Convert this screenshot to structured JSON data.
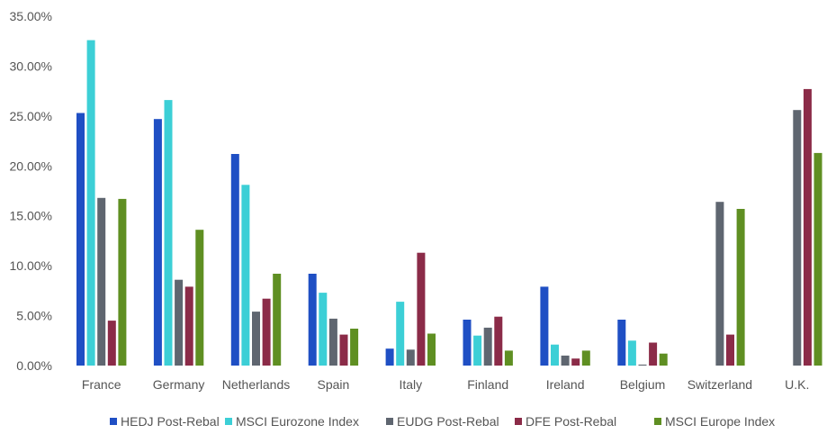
{
  "chart_data": {
    "type": "bar",
    "title": "",
    "xlabel": "",
    "ylabel": "",
    "ylim": [
      0,
      35
    ],
    "yticks": [
      0,
      5,
      10,
      15,
      20,
      25,
      30,
      35
    ],
    "ytick_labels": [
      "0.00%",
      "5.00%",
      "10.00%",
      "15.00%",
      "20.00%",
      "25.00%",
      "30.00%",
      "35.00%"
    ],
    "grid": false,
    "legend": "bottom",
    "categories": [
      "France",
      "Germany",
      "Netherlands",
      "Spain",
      "Italy",
      "Finland",
      "Ireland",
      "Belgium",
      "Switzerland",
      "U.K."
    ],
    "series": [
      {
        "name": "HEDJ Post-Rebal",
        "color": "#1f4fc4",
        "values": [
          25.3,
          24.7,
          21.2,
          9.2,
          1.7,
          4.6,
          7.9,
          4.6,
          0,
          0
        ]
      },
      {
        "name": "MSCI Eurozone Index",
        "color": "#3ccfd6",
        "values": [
          32.6,
          26.6,
          18.1,
          7.3,
          6.4,
          3.0,
          2.1,
          2.5,
          0,
          0
        ]
      },
      {
        "name": "EUDG Post-Rebal",
        "color": "#5f6670",
        "values": [
          16.8,
          8.6,
          5.4,
          4.7,
          1.6,
          3.8,
          1.0,
          0.1,
          16.4,
          25.6
        ]
      },
      {
        "name": "DFE Post-Rebal",
        "color": "#8b2b48",
        "values": [
          4.5,
          7.9,
          6.7,
          3.1,
          11.3,
          4.9,
          0.7,
          2.3,
          3.1,
          27.7
        ]
      },
      {
        "name": "MSCI Europe Index",
        "color": "#5f8f22",
        "values": [
          16.7,
          13.6,
          9.2,
          3.7,
          3.2,
          1.5,
          1.5,
          1.2,
          15.7,
          21.3
        ]
      }
    ]
  }
}
